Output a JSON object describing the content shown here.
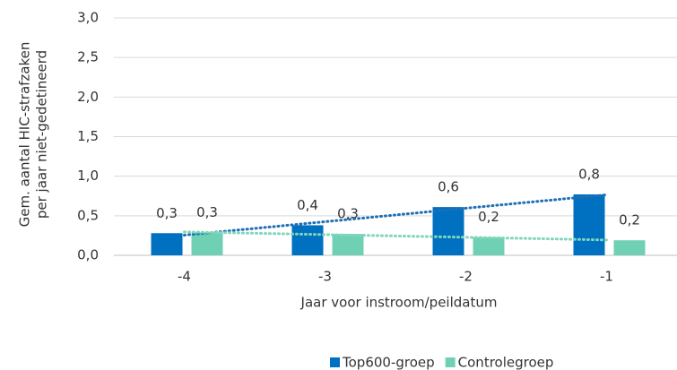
{
  "chart_data": {
    "type": "bar",
    "ylabel": [
      "Gem. aantal HIC-strafzaken",
      "per jaar niet-gedetineerd"
    ],
    "xlabel": "Jaar voor instroom/peildatum",
    "categories": [
      "-4",
      "-3",
      "-2",
      "-1"
    ],
    "series": [
      {
        "name": "Top600-groep",
        "color": "#0070c0",
        "trendline_color": "#1f6fb5",
        "values": [
          0.28,
          0.38,
          0.61,
          0.77
        ],
        "value_labels": [
          "0,3",
          "0,4",
          "0,6",
          "0,8"
        ]
      },
      {
        "name": "Controlegroep",
        "color": "#70d0b4",
        "trendline_color": "#7fd6bb",
        "values": [
          0.29,
          0.27,
          0.23,
          0.19
        ],
        "value_labels": [
          "0,3",
          "0,3",
          "0,2",
          "0,2"
        ]
      }
    ],
    "trendline": true,
    "ylim": [
      0,
      3
    ],
    "yticks": [
      {
        "value": 0,
        "label": "0,0"
      },
      {
        "value": 0.5,
        "label": "0,5"
      },
      {
        "value": 1,
        "label": "1,0"
      },
      {
        "value": 1.5,
        "label": "1,5"
      },
      {
        "value": 2,
        "label": "2,0"
      },
      {
        "value": 2.5,
        "label": "2,5"
      },
      {
        "value": 3,
        "label": "3,0"
      }
    ],
    "grid": true,
    "legend": "bottom"
  }
}
